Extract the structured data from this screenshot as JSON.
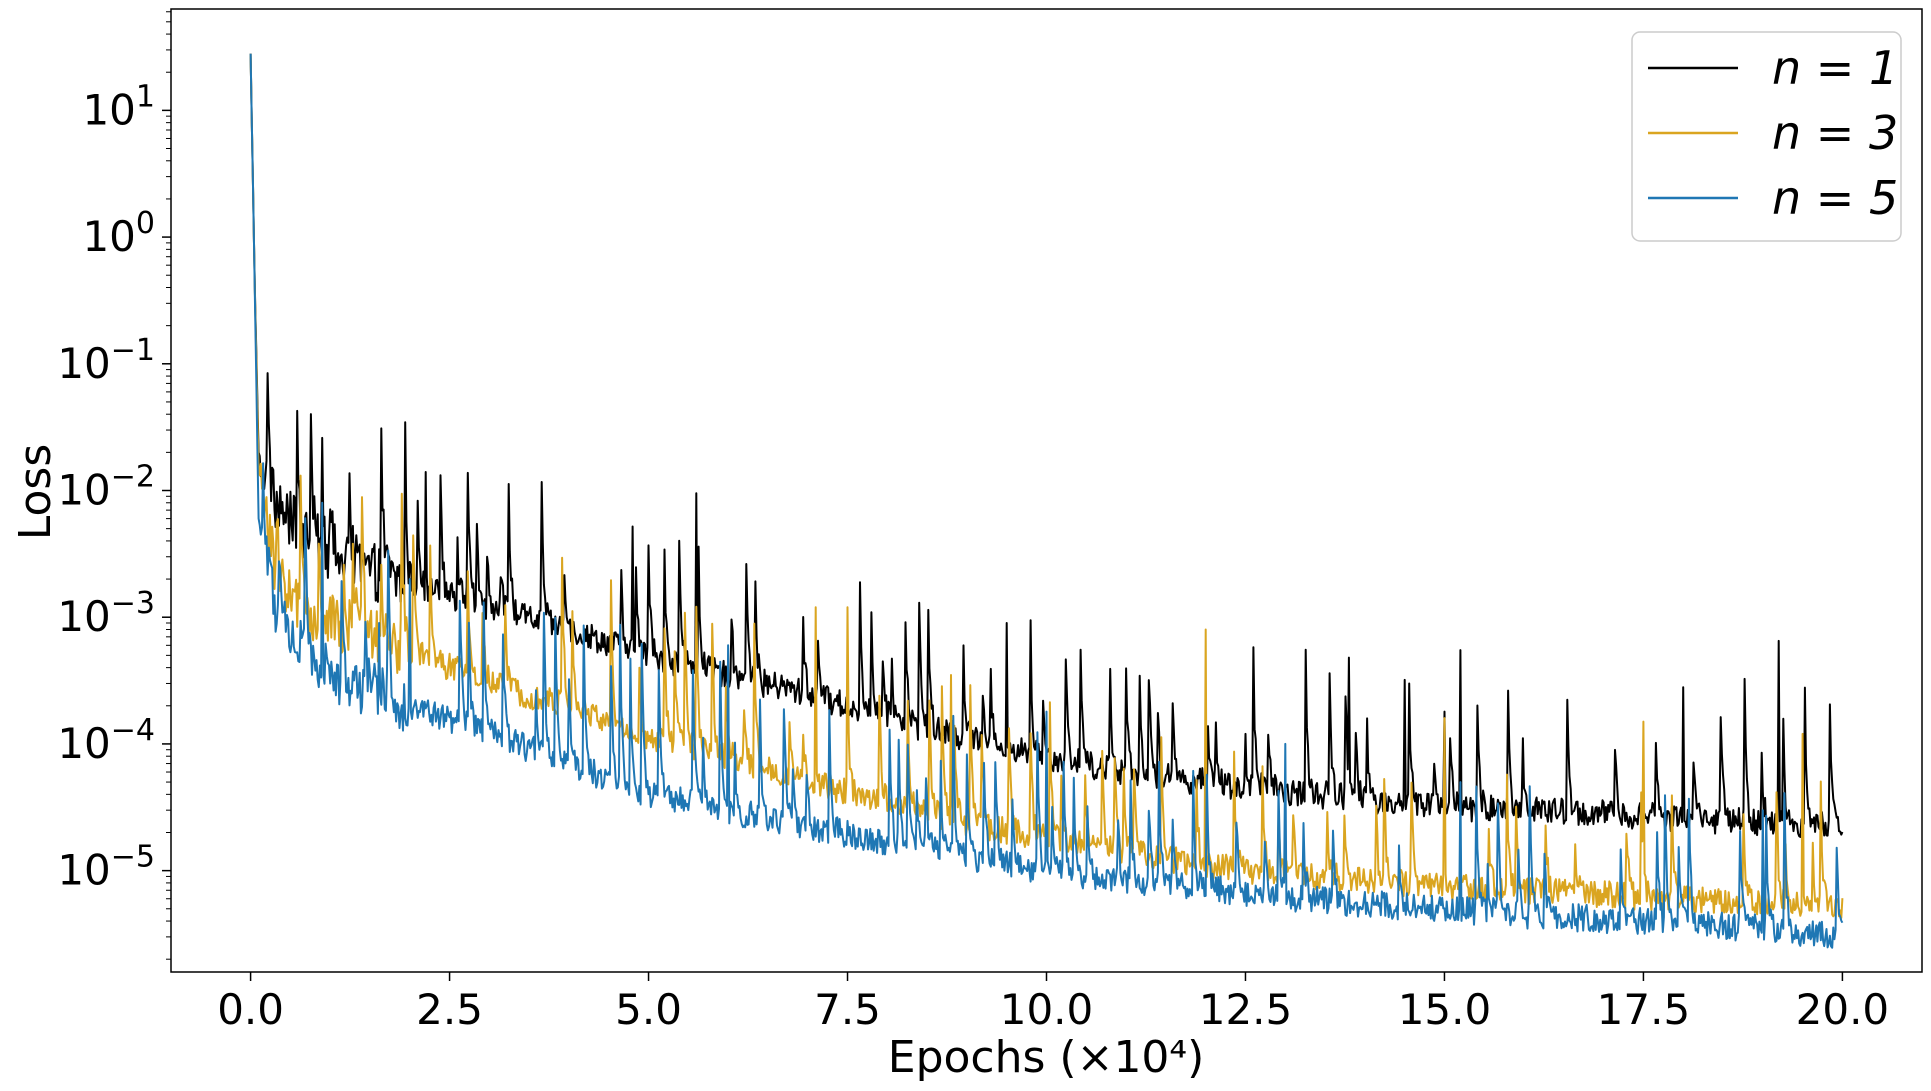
{
  "chart_data": {
    "type": "line",
    "title": "",
    "xlabel": "Epochs (×10⁴)",
    "ylabel": "Loss",
    "xscale": "linear",
    "yscale": "log",
    "xlim": [
      -1.0,
      21.0
    ],
    "ylim_exponent": [
      -5.8,
      1.8
    ],
    "xticks": [
      0.0,
      2.5,
      5.0,
      7.5,
      10.0,
      12.5,
      15.0,
      17.5,
      20.0
    ],
    "xtick_labels": [
      "0.0",
      "2.5",
      "5.0",
      "7.5",
      "10.0",
      "12.5",
      "15.0",
      "17.5",
      "20.0"
    ],
    "ytick_exponents": [
      1,
      0,
      -1,
      -2,
      -3,
      -4,
      -5
    ],
    "ytick_base": "10",
    "ytick_exponent_labels": [
      "1",
      "0",
      "−1",
      "−2",
      "−3",
      "−4",
      "−5"
    ],
    "grid": false,
    "legend_position": "upper right",
    "series": [
      {
        "name": "n = 1",
        "color": "#000000",
        "baseline": [
          [
            0.0,
            28
          ],
          [
            0.05,
            0.5
          ],
          [
            0.1,
            0.02
          ],
          [
            0.3,
            0.008
          ],
          [
            0.6,
            0.005
          ],
          [
            1.0,
            0.003
          ],
          [
            2.0,
            0.0018
          ],
          [
            3.0,
            0.0012
          ],
          [
            4.0,
            0.0008
          ],
          [
            5.0,
            0.0005
          ],
          [
            6.0,
            0.00035
          ],
          [
            7.0,
            0.00025
          ],
          [
            8.0,
            0.00016
          ],
          [
            9.0,
            0.00011
          ],
          [
            10.0,
            8e-05
          ],
          [
            11.0,
            6e-05
          ],
          [
            12.0,
            5e-05
          ],
          [
            13.0,
            4.2e-05
          ],
          [
            14.0,
            3.7e-05
          ],
          [
            15.0,
            3.2e-05
          ],
          [
            16.0,
            3e-05
          ],
          [
            17.0,
            2.8e-05
          ],
          [
            18.0,
            2.6e-05
          ],
          [
            19.0,
            2.4e-05
          ],
          [
            20.0,
            2.3e-05
          ]
        ],
        "peaks": [
          [
            0.9,
            0.026
          ],
          [
            2.2,
            0.014
          ],
          [
            4.8,
            0.0052
          ],
          [
            5.6,
            0.0095
          ],
          [
            9.5,
            0.0009
          ],
          [
            12.5,
            0.00012
          ],
          [
            13.8,
            0.00048
          ],
          [
            14.5,
            0.00032
          ],
          [
            15.0,
            0.00018
          ],
          [
            15.2,
            0.00055
          ],
          [
            18.0,
            0.00028
          ],
          [
            19.2,
            0.00065
          ]
        ]
      },
      {
        "name": "n = 3",
        "color": "#DAA520",
        "baseline": [
          [
            0.0,
            28
          ],
          [
            0.05,
            0.5
          ],
          [
            0.1,
            0.015
          ],
          [
            0.3,
            0.0025
          ],
          [
            0.6,
            0.0012
          ],
          [
            1.0,
            0.0009
          ],
          [
            2.0,
            0.00055
          ],
          [
            3.0,
            0.0003
          ],
          [
            4.0,
            0.0002
          ],
          [
            5.0,
            0.00011
          ],
          [
            6.0,
            8e-05
          ],
          [
            7.0,
            5e-05
          ],
          [
            8.0,
            3.5e-05
          ],
          [
            9.0,
            2.4e-05
          ],
          [
            10.0,
            1.8e-05
          ],
          [
            11.0,
            1.4e-05
          ],
          [
            12.0,
            1.1e-05
          ],
          [
            13.0,
            9.5e-06
          ],
          [
            14.0,
            8.5e-06
          ],
          [
            15.0,
            7.5e-06
          ],
          [
            16.0,
            7e-06
          ],
          [
            17.0,
            6.5e-06
          ],
          [
            18.0,
            6e-06
          ],
          [
            19.0,
            5.5e-06
          ],
          [
            20.0,
            5e-06
          ]
        ],
        "peaks": [
          [
            7.1,
            0.0012
          ],
          [
            7.5,
            0.0012
          ],
          [
            12.0,
            0.0008
          ],
          [
            8.8,
            0.00035
          ],
          [
            15.0,
            0.00016
          ],
          [
            17.5,
            0.00015
          ],
          [
            19.5,
            0.00012
          ]
        ]
      },
      {
        "name": "n = 5",
        "color": "#1F77B4",
        "baseline": [
          [
            0.0,
            28
          ],
          [
            0.05,
            0.5
          ],
          [
            0.1,
            0.006
          ],
          [
            0.3,
            0.0012
          ],
          [
            0.6,
            0.0006
          ],
          [
            1.0,
            0.00035
          ],
          [
            2.0,
            0.0002
          ],
          [
            3.0,
            0.00012
          ],
          [
            4.0,
            7e-05
          ],
          [
            5.0,
            4e-05
          ],
          [
            6.0,
            3e-05
          ],
          [
            7.0,
            2.2e-05
          ],
          [
            8.0,
            1.7e-05
          ],
          [
            9.0,
            1.3e-05
          ],
          [
            10.0,
            1e-05
          ],
          [
            11.0,
            8.5e-06
          ],
          [
            12.0,
            7.2e-06
          ],
          [
            13.0,
            6.2e-06
          ],
          [
            14.0,
            5.5e-06
          ],
          [
            15.0,
            5e-06
          ],
          [
            16.0,
            4.5e-06
          ],
          [
            17.0,
            4.1e-06
          ],
          [
            18.0,
            3.8e-06
          ],
          [
            19.0,
            3.5e-06
          ],
          [
            20.0,
            3e-06
          ]
        ],
        "peaks": [
          [
            0.9,
            0.008
          ],
          [
            2.0,
            0.002
          ],
          [
            6.0,
            0.0006
          ],
          [
            10.0,
            0.00018
          ],
          [
            13.0,
            0.0001
          ],
          [
            15.2,
            5e-05
          ],
          [
            19.0,
            3e-05
          ]
        ]
      }
    ]
  }
}
